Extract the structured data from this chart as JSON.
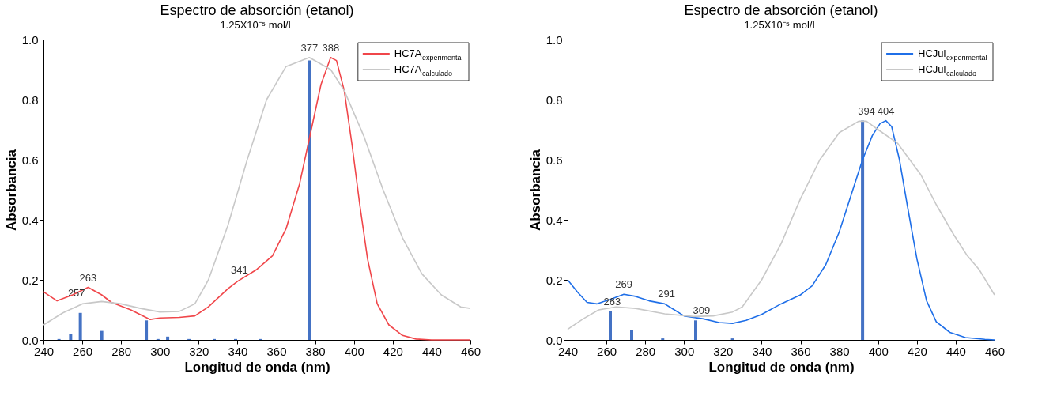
{
  "chart_data": [
    {
      "type": "line",
      "title": "Espectro de absorción (etanol)",
      "subtitle": "1.25X10⁻⁵ mol/L",
      "xlabel": "Longitud de onda (nm)",
      "ylabel": "Absorbancia",
      "xlim": [
        240,
        460
      ],
      "ylim": [
        0,
        1
      ],
      "xticks": [
        240,
        260,
        280,
        300,
        320,
        340,
        360,
        380,
        400,
        420,
        440,
        460
      ],
      "yticks": [
        {
          "value": 0,
          "label": "0.0"
        },
        {
          "value": 0.2,
          "label": "0.2"
        },
        {
          "value": 0.4,
          "label": "0.4"
        },
        {
          "value": 0.6,
          "label": "0.6"
        },
        {
          "value": 0.8,
          "label": "0.8"
        },
        {
          "value": 1,
          "label": "1.0"
        }
      ],
      "grid": false,
      "legend": "top right",
      "series": [
        {
          "name": "HC7A$_{experimental}$",
          "type": "line",
          "color": "#f0464a",
          "x": [
            240,
            247,
            255,
            263,
            270,
            275,
            285,
            295,
            300,
            310,
            318,
            325,
            335,
            340,
            350,
            358,
            365,
            372,
            378,
            383,
            388,
            391,
            395,
            399,
            403,
            407,
            412,
            418,
            425,
            432,
            440,
            460
          ],
          "values": [
            0.16,
            0.13,
            0.15,
            0.175,
            0.15,
            0.125,
            0.1,
            0.068,
            0.073,
            0.075,
            0.08,
            0.11,
            0.17,
            0.195,
            0.235,
            0.28,
            0.37,
            0.52,
            0.7,
            0.85,
            0.94,
            0.93,
            0.83,
            0.65,
            0.45,
            0.27,
            0.12,
            0.05,
            0.015,
            0.003,
            0,
            0
          ]
        },
        {
          "name": "HC7A$_{calculado}$",
          "type": "line",
          "color": "#c8c8c8",
          "x": [
            240,
            250,
            260,
            270,
            280,
            290,
            300,
            310,
            318,
            325,
            335,
            345,
            355,
            365,
            377,
            388,
            395,
            405,
            415,
            425,
            435,
            445,
            455,
            460
          ],
          "values": [
            0.05,
            0.09,
            0.12,
            0.128,
            0.12,
            0.105,
            0.093,
            0.095,
            0.12,
            0.2,
            0.38,
            0.6,
            0.8,
            0.91,
            0.94,
            0.9,
            0.83,
            0.68,
            0.5,
            0.34,
            0.22,
            0.15,
            0.11,
            0.105
          ]
        },
        {
          "type": "bar",
          "color": "#4472c4",
          "x": [
            248,
            254,
            259,
            270,
            293,
            299,
            304,
            315,
            328,
            339,
            352,
            377
          ],
          "values": [
            0.003,
            0.02,
            0.09,
            0.03,
            0.065,
            0.003,
            0.011,
            0.003,
            0.003,
            0.003,
            0.003,
            0.93
          ]
        }
      ],
      "annotations": [
        {
          "text": "377",
          "x": 377,
          "y": 0.94
        },
        {
          "text": "388",
          "x": 388,
          "y": 0.94
        },
        {
          "text": "341",
          "x": 341,
          "y": 0.2
        },
        {
          "text": "263",
          "x": 263,
          "y": 0.175
        },
        {
          "text": "257",
          "x": 257,
          "y": 0.125
        }
      ]
    },
    {
      "type": "line",
      "title": "Espectro de absorción (etanol)",
      "subtitle": "1.25X10⁻⁵ mol/L",
      "xlabel": "Longitud de onda (nm)",
      "ylabel": "Absorbancia",
      "xlim": [
        240,
        460
      ],
      "ylim": [
        0,
        1
      ],
      "xticks": [
        240,
        260,
        280,
        300,
        320,
        340,
        360,
        380,
        400,
        420,
        440,
        460
      ],
      "yticks": [
        {
          "value": 0,
          "label": "0.0"
        },
        {
          "value": 0.2,
          "label": "0.2"
        },
        {
          "value": 0.4,
          "label": "0.4"
        },
        {
          "value": 0.6,
          "label": "0.6"
        },
        {
          "value": 0.8,
          "label": "0.8"
        },
        {
          "value": 1,
          "label": "1.0"
        }
      ],
      "grid": false,
      "legend": "top right",
      "series": [
        {
          "name": "HCJul$_{experimental}$",
          "type": "line",
          "color": "#1f6fe8",
          "x": [
            240,
            245,
            250,
            255,
            262,
            269,
            275,
            282,
            290,
            295,
            300,
            310,
            318,
            325,
            332,
            340,
            350,
            360,
            366,
            373,
            380,
            386,
            392,
            397,
            401,
            404,
            407,
            411,
            415,
            420,
            425,
            430,
            437,
            445,
            455,
            460
          ],
          "values": [
            0.2,
            0.16,
            0.125,
            0.12,
            0.135,
            0.152,
            0.145,
            0.13,
            0.12,
            0.1,
            0.08,
            0.07,
            0.058,
            0.055,
            0.065,
            0.085,
            0.12,
            0.15,
            0.18,
            0.25,
            0.36,
            0.48,
            0.6,
            0.68,
            0.72,
            0.73,
            0.71,
            0.6,
            0.45,
            0.27,
            0.13,
            0.06,
            0.025,
            0.008,
            0.002,
            0
          ]
        },
        {
          "name": "HCJul$_{calculado}$",
          "type": "line",
          "color": "#c8c8c8",
          "x": [
            240,
            248,
            256,
            265,
            275,
            290,
            305,
            315,
            325,
            330,
            340,
            350,
            360,
            370,
            380,
            390,
            394,
            400,
            410,
            422,
            430,
            439,
            446,
            452,
            460
          ],
          "values": [
            0.035,
            0.07,
            0.1,
            0.11,
            0.105,
            0.087,
            0.078,
            0.08,
            0.093,
            0.11,
            0.2,
            0.32,
            0.47,
            0.6,
            0.69,
            0.728,
            0.728,
            0.7,
            0.655,
            0.55,
            0.45,
            0.35,
            0.28,
            0.235,
            0.15
          ]
        },
        {
          "type": "bar",
          "color": "#4472c4",
          "x": [
            262,
            273,
            289,
            306,
            325,
            392
          ],
          "values": [
            0.095,
            0.033,
            0.005,
            0.065,
            0.005,
            0.73
          ]
        }
      ],
      "annotations": [
        {
          "text": "394",
          "x": 394,
          "y": 0.73
        },
        {
          "text": "404",
          "x": 404,
          "y": 0.73
        },
        {
          "text": "269",
          "x": 269,
          "y": 0.152
        },
        {
          "text": "291",
          "x": 291,
          "y": 0.12
        },
        {
          "text": "263",
          "x": 263,
          "y": 0.095
        },
        {
          "text": "309",
          "x": 309,
          "y": 0.065
        }
      ]
    }
  ]
}
